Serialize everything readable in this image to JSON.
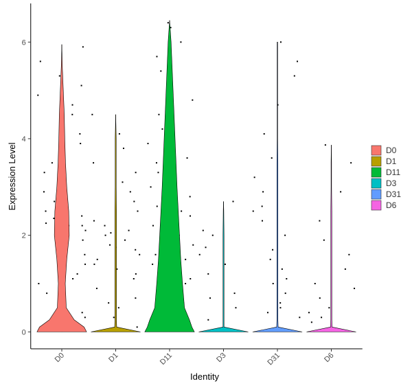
{
  "chart_data": {
    "type": "violin",
    "x_label": "Identity",
    "y_label": "Expression Level",
    "categories": [
      "D0",
      "D1",
      "D11",
      "D3",
      "D31",
      "D6"
    ],
    "colors": [
      "#F8766D",
      "#B79F00",
      "#00BA38",
      "#00BFC4",
      "#619CFF",
      "#F564E3"
    ],
    "ylim": [
      -0.35,
      6.8
    ],
    "yticks": [
      0,
      2,
      4,
      6
    ],
    "legend": "right",
    "max": [
      5.95,
      4.5,
      6.45,
      2.7,
      6.0,
      3.87
    ],
    "density_y": [
      0,
      0.1,
      0.25,
      0.5,
      1,
      1.5,
      2,
      2.5,
      3,
      3.5,
      4,
      4.5,
      5,
      5.5,
      6,
      6.5
    ],
    "density": [
      [
        1,
        0.9,
        0.5,
        0.18,
        0.14,
        0.2,
        0.3,
        0.28,
        0.2,
        0.15,
        0.12,
        0.1,
        0.06,
        0.02,
        null,
        null
      ],
      [
        1,
        0.04,
        0.03,
        0.03,
        0.03,
        0.03,
        0.03,
        0.03,
        0.02,
        0.02,
        0.02,
        null,
        null,
        null,
        null,
        null
      ],
      [
        1,
        0.9,
        0.8,
        0.6,
        0.52,
        0.45,
        0.4,
        0.35,
        0.3,
        0.26,
        0.22,
        0.18,
        0.14,
        0.1,
        0.06,
        null
      ],
      [
        1,
        0.02,
        0.02,
        0.02,
        0.02,
        0.02,
        0.02,
        0.01,
        null,
        null,
        null,
        null,
        null,
        null,
        null,
        null
      ],
      [
        1,
        0.03,
        0.02,
        0.02,
        0.02,
        0.02,
        0.02,
        0.02,
        0.02,
        0.02,
        0.01,
        0.01,
        0.01,
        0.01,
        0.01,
        null
      ],
      [
        1,
        0.03,
        0.02,
        0.02,
        0.02,
        0.02,
        0.02,
        0.02,
        0.01,
        0.01,
        null,
        null,
        null,
        null,
        null,
        null
      ]
    ],
    "points": [
      [
        0.05,
        0.2,
        0.4,
        0.6,
        0.8,
        1.0,
        1.2,
        1.4,
        1.6,
        1.8,
        1.9,
        2.0,
        2.1,
        2.15,
        2.2,
        2.25,
        2.3,
        2.35,
        2.4,
        2.5,
        2.6,
        2.7,
        2.9,
        3.1,
        3.3,
        3.5,
        3.7,
        3.9,
        4.1,
        4.3,
        4.5,
        4.7,
        4.9,
        5.1,
        5.3,
        5.6,
        5.9,
        1.1,
        2.2,
        0.3
      ],
      [
        0.1,
        0.3,
        0.5,
        0.7,
        0.9,
        1.1,
        1.3,
        1.4,
        1.5,
        1.6,
        1.7,
        1.8,
        1.9,
        2.0,
        2.1,
        2.2,
        2.3,
        2.5,
        2.7,
        2.9,
        3.1,
        3.3,
        3.5,
        3.8,
        4.1,
        4.5,
        1.2,
        1.75,
        0.6,
        2.05
      ],
      [
        0.02,
        0.05,
        0.1,
        0.15,
        0.2,
        0.3,
        0.4,
        0.5,
        0.6,
        0.8,
        1.0,
        1.2,
        1.4,
        1.6,
        1.8,
        2.0,
        2.2,
        2.4,
        2.6,
        2.8,
        3.0,
        3.3,
        3.6,
        3.9,
        4.2,
        4.5,
        4.8,
        5.1,
        5.4,
        5.7,
        6.0,
        6.3,
        0.25,
        0.7,
        1.1,
        1.5,
        2.5,
        3.5,
        4.6,
        6.4
      ],
      [
        0.25,
        0.5,
        0.8,
        1.2,
        1.4,
        1.75,
        2.0,
        2.1,
        2.7,
        1.6,
        0.7
      ],
      [
        0.3,
        0.5,
        0.6,
        0.8,
        1.0,
        1.3,
        1.5,
        1.7,
        2.0,
        2.3,
        2.6,
        2.9,
        3.2,
        3.6,
        4.1,
        4.7,
        5.3,
        5.6,
        6.0,
        0.4,
        1.1,
        2.5
      ],
      [
        0.2,
        0.4,
        0.5,
        0.7,
        1.0,
        1.3,
        1.6,
        1.9,
        2.3,
        2.9,
        3.5,
        3.87,
        0.9,
        0.3
      ]
    ]
  }
}
